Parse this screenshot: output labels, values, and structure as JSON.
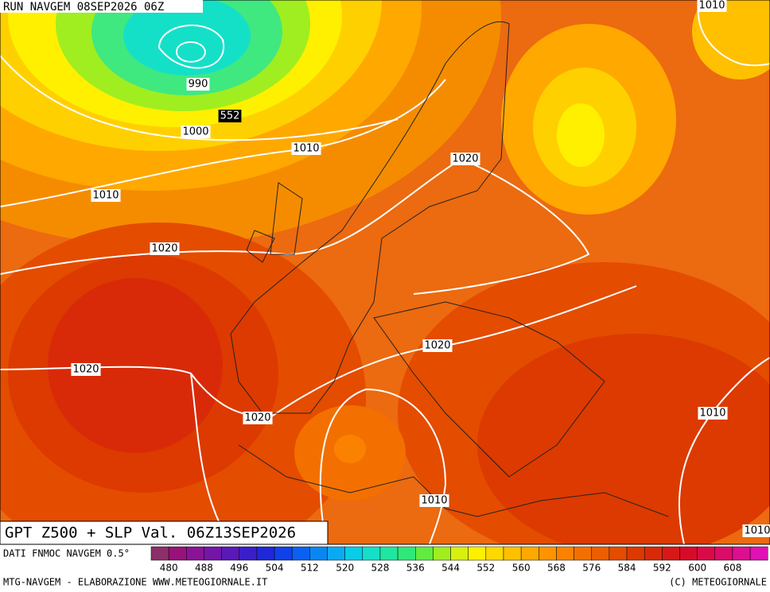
{
  "header": {
    "run": "RUN NAVGEM 08SEP2026 06Z"
  },
  "isobar_labels": [
    "1010",
    "990",
    "552",
    "1000",
    "1010",
    "1020",
    "1010",
    "1020",
    "1020",
    "1020",
    "1010",
    "1020",
    "1010",
    "1010"
  ],
  "title": "GPT Z500 + SLP Val. 06Z13SEP2026",
  "colorbar": {
    "source": "DATI FNMOC NAVGEM 0.5°",
    "labels": [
      480,
      488,
      496,
      504,
      512,
      520,
      528,
      536,
      544,
      552,
      560,
      568,
      576,
      584,
      592,
      600,
      608
    ],
    "colors": [
      "#8c2f6a",
      "#98127a",
      "#8a1396",
      "#7515a8",
      "#5a18b8",
      "#3a1ec8",
      "#1f27d8",
      "#1040e8",
      "#0a60f0",
      "#0a86f2",
      "#0aaaf2",
      "#0acbe8",
      "#14e0c8",
      "#20e6a0",
      "#30e878",
      "#60ec40",
      "#a0ee20",
      "#d8f010",
      "#fff000",
      "#ffd800",
      "#ffc000",
      "#ffa800",
      "#ff9400",
      "#fa8200",
      "#f37000",
      "#ec5e00",
      "#e44c00",
      "#dc3a00",
      "#d82a08",
      "#d81818",
      "#d80a28",
      "#da0a48",
      "#dc0c6a",
      "#de0e90",
      "#e010b4"
    ]
  },
  "footer": {
    "left": "MTG-NAVGEM - ELABORAZIONE WWW.METEOGIORNALE.IT",
    "right": "(C) METEOGIORNALE"
  }
}
